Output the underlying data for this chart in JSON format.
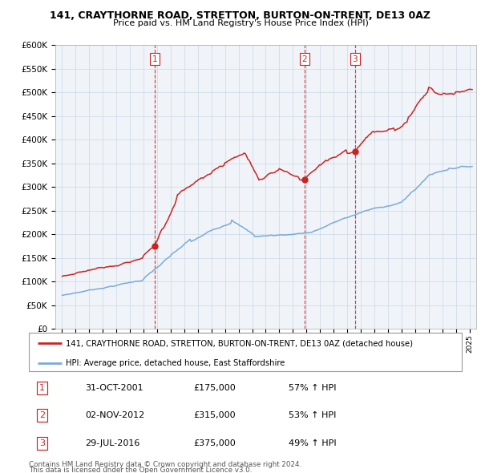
{
  "title": "141, CRAYTHORNE ROAD, STRETTON, BURTON-ON-TRENT, DE13 0AZ",
  "subtitle": "Price paid vs. HM Land Registry's House Price Index (HPI)",
  "legend_line1": "141, CRAYTHORNE ROAD, STRETTON, BURTON-ON-TRENT, DE13 0AZ (detached house)",
  "legend_line2": "HPI: Average price, detached house, East Staffordshire",
  "footer1": "Contains HM Land Registry data © Crown copyright and database right 2024.",
  "footer2": "This data is licensed under the Open Government Licence v3.0.",
  "transactions": [
    {
      "num": 1,
      "date": "31-OCT-2001",
      "price": "£175,000",
      "pct": "57% ↑ HPI",
      "year": 2001.83,
      "val": 175000
    },
    {
      "num": 2,
      "date": "02-NOV-2012",
      "price": "£315,000",
      "pct": "53% ↑ HPI",
      "year": 2012.84,
      "val": 315000
    },
    {
      "num": 3,
      "date": "29-JUL-2016",
      "price": "£375,000",
      "pct": "49% ↑ HPI",
      "year": 2016.57,
      "val": 375000
    }
  ],
  "vline_dates": [
    2001.83,
    2012.84,
    2016.57
  ],
  "vline_labels": [
    "1",
    "2",
    "3"
  ],
  "hpi_color": "#7aaadd",
  "price_color": "#cc2222",
  "ylim": [
    0,
    600000
  ],
  "yticks": [
    0,
    50000,
    100000,
    150000,
    200000,
    250000,
    300000,
    350000,
    400000,
    450000,
    500000,
    550000,
    600000
  ],
  "xlim": [
    1994.5,
    2025.5
  ],
  "background_color": "#f0f4f8"
}
